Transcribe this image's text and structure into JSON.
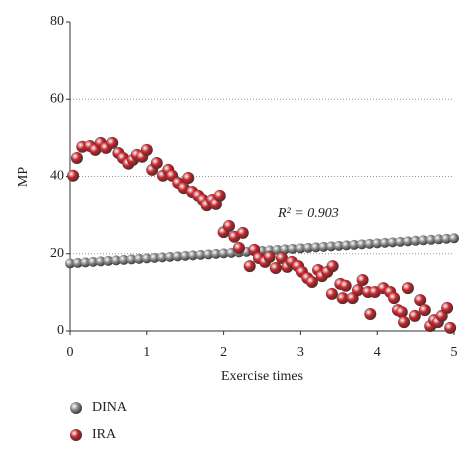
{
  "chart_data": {
    "type": "scatter",
    "xlabel": "Exercise times",
    "ylabel": "MP",
    "annotation": "R² = 0.903",
    "xlim": [
      0,
      5
    ],
    "xticks": [
      0,
      1,
      2,
      3,
      4,
      5
    ],
    "ylim": [
      0,
      80
    ],
    "yticks": [
      0,
      20,
      40,
      60,
      80
    ],
    "grid": true,
    "legend": "bottom-left",
    "series": [
      {
        "name": "DINA",
        "color": "#8a8a8a",
        "x": [
          0,
          0.1,
          0.2,
          0.3,
          0.4,
          0.5,
          0.6,
          0.7,
          0.8,
          0.9,
          1,
          1.1,
          1.2,
          1.3,
          1.4,
          1.5,
          1.6,
          1.7,
          1.8,
          1.9,
          2,
          2.1,
          2.2,
          2.3,
          2.4,
          2.5,
          2.6,
          2.7,
          2.8,
          2.9,
          3,
          3.1,
          3.2,
          3.3,
          3.4,
          3.5,
          3.6,
          3.7,
          3.8,
          3.9,
          4,
          4.1,
          4.2,
          4.3,
          4.4,
          4.5,
          4.6,
          4.7,
          4.8,
          4.9,
          5
        ],
        "values": [
          17.5,
          17.63,
          17.76,
          17.89,
          18.02,
          18.15,
          18.28,
          18.41,
          18.54,
          18.67,
          18.8,
          18.93,
          19.06,
          19.19,
          19.32,
          19.45,
          19.58,
          19.71,
          19.84,
          19.97,
          20.1,
          20.23,
          20.36,
          20.49,
          20.62,
          20.75,
          20.88,
          21.01,
          21.14,
          21.27,
          21.4,
          21.53,
          21.66,
          21.79,
          21.92,
          22.05,
          22.18,
          22.31,
          22.44,
          22.57,
          22.7,
          22.83,
          22.96,
          23.09,
          23.22,
          23.35,
          23.48,
          23.61,
          23.74,
          23.87,
          24
        ]
      },
      {
        "name": "IRA",
        "color": "#c8252b",
        "x": [
          0.04,
          0.09,
          0.16,
          0.26,
          0.33,
          0.4,
          0.47,
          0.55,
          0.63,
          0.69,
          0.76,
          0.82,
          0.87,
          0.94,
          1.0,
          1.07,
          1.13,
          1.21,
          1.28,
          1.33,
          1.41,
          1.48,
          1.54,
          1.59,
          1.67,
          1.73,
          1.78,
          1.85,
          1.9,
          1.95,
          2.0,
          2.07,
          2.14,
          2.2,
          2.25,
          2.34,
          2.4,
          2.46,
          2.54,
          2.6,
          2.68,
          2.76,
          2.83,
          2.89,
          2.97,
          3.02,
          3.09,
          3.15,
          3.23,
          3.28,
          3.35,
          3.42,
          3.41,
          3.52,
          3.59,
          3.55,
          3.68,
          3.75,
          3.81,
          3.88,
          3.91,
          3.97,
          4.08,
          4.17,
          4.22,
          4.27,
          4.32,
          4.35,
          4.4,
          4.49,
          4.56,
          4.62,
          4.69,
          4.74,
          4.79,
          4.84,
          4.91,
          4.95
        ],
        "values": [
          40.2,
          44.8,
          47.7,
          47.9,
          46.9,
          48.7,
          47.4,
          48.7,
          46.1,
          44.8,
          43.3,
          44.3,
          45.6,
          45.1,
          46.9,
          41.7,
          43.5,
          40.2,
          41.7,
          40.2,
          38.3,
          37.0,
          39.6,
          36.0,
          35.0,
          33.9,
          32.6,
          33.9,
          32.9,
          35.0,
          25.6,
          27.2,
          24.4,
          21.5,
          25.4,
          16.8,
          21.0,
          18.9,
          17.9,
          19.2,
          16.3,
          18.9,
          16.6,
          17.9,
          16.8,
          15.3,
          13.7,
          12.7,
          15.8,
          14.2,
          15.3,
          16.8,
          9.6,
          12.2,
          11.7,
          8.5,
          8.5,
          10.6,
          13.2,
          10.1,
          4.4,
          10.1,
          11.1,
          10.1,
          8.5,
          5.4,
          4.9,
          2.3,
          11.1,
          3.9,
          8.0,
          5.4,
          1.3,
          2.8,
          2.3,
          3.9,
          6.0,
          0.8
        ]
      }
    ]
  }
}
